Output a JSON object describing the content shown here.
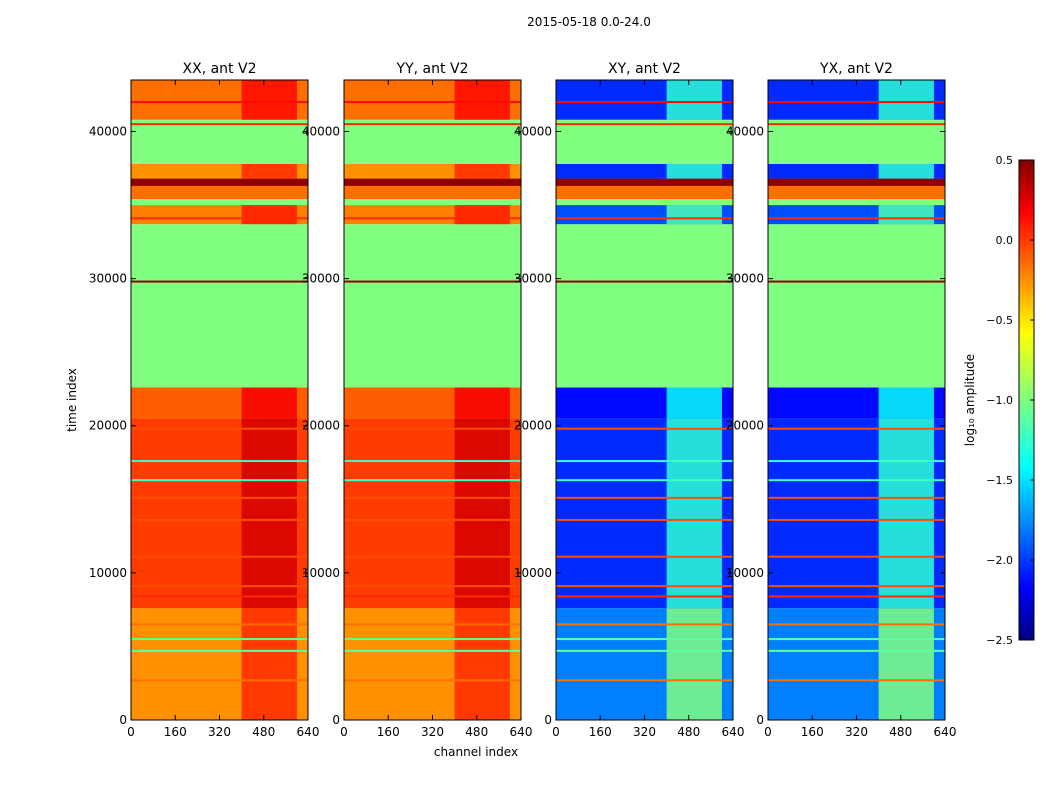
{
  "figure": {
    "suptitle": "2015-05-18 0.0-24.0",
    "xlabel": "channel index",
    "ylabel": "time index"
  },
  "chart_data": {
    "type": "heatmap",
    "title": "2015-05-18 0.0-24.0",
    "xlabel": "channel index",
    "ylabel": "time index",
    "xlim": [
      0,
      640
    ],
    "ylim": [
      0,
      43500
    ],
    "xticks": [
      "0",
      "160",
      "320",
      "480",
      "640"
    ],
    "xtick_values": [
      0,
      160,
      320,
      480,
      640
    ],
    "yticks": [
      "0",
      "10000",
      "20000",
      "30000",
      "40000"
    ],
    "ytick_values": [
      0,
      10000,
      20000,
      30000,
      40000
    ],
    "colormap": "jet",
    "panels": [
      {
        "title": "XX, ant V2",
        "kind": "parallel"
      },
      {
        "title": "YY, ant V2",
        "kind": "parallel"
      },
      {
        "title": "XY, ant V2",
        "kind": "cross"
      },
      {
        "title": "YX, ant V2",
        "kind": "cross"
      }
    ],
    "colorbar": {
      "label": "log₁₀ amplitude",
      "min": -2.5,
      "max": 0.5,
      "ticks": [
        "0.5",
        "0.0",
        "−0.5",
        "−1.0",
        "−1.5",
        "−2.0",
        "−2.5"
      ],
      "tick_values": [
        0.5,
        0.0,
        -0.5,
        -1.0,
        -1.5,
        -2.0,
        -2.5
      ]
    },
    "flagged_value": -1.0,
    "time_segments": [
      {
        "t0": 0,
        "t1": 7600,
        "parallel": -0.3,
        "cross": -1.75
      },
      {
        "t0": 7600,
        "t1": 20500,
        "parallel": -0.05,
        "cross": -2.0
      },
      {
        "t0": 20500,
        "t1": 22600,
        "parallel": -0.15,
        "cross": -2.1
      },
      {
        "t0": 22600,
        "t1": 33700,
        "flagged": true
      },
      {
        "t0": 33700,
        "t1": 35000,
        "parallel": -0.25,
        "cross": -1.9
      },
      {
        "t0": 35000,
        "t1": 35400,
        "flagged": true
      },
      {
        "t0": 35400,
        "t1": 36300,
        "value": -0.2
      },
      {
        "t0": 36300,
        "t1": 36800,
        "value": 0.45
      },
      {
        "t0": 36800,
        "t1": 37800,
        "parallel": -0.3,
        "cross": -2.0
      },
      {
        "t0": 37800,
        "t1": 40800,
        "flagged": true
      },
      {
        "t0": 40800,
        "t1": 43500,
        "parallel": -0.2,
        "cross": -2.0
      }
    ],
    "horizontal_lines": [
      {
        "t": 29800,
        "value": 0.45
      },
      {
        "t": 8400,
        "value": 0.0
      },
      {
        "t": 9100,
        "value": -0.1
      },
      {
        "t": 11100,
        "value": -0.1
      },
      {
        "t": 13600,
        "value": -0.1
      },
      {
        "t": 15100,
        "value": -0.1
      },
      {
        "t": 19800,
        "value": -0.1
      },
      {
        "t": 16300,
        "value": -1.2
      },
      {
        "t": 17600,
        "value": -1.2
      },
      {
        "t": 4700,
        "value": -1.1
      },
      {
        "t": 5500,
        "value": -1.1
      },
      {
        "t": 6500,
        "value": -0.2
      },
      {
        "t": 2700,
        "value": -0.2
      },
      {
        "t": 42000,
        "value": 0.1
      },
      {
        "t": 40500,
        "value": 0.0
      },
      {
        "t": 34100,
        "value": 0.0
      }
    ],
    "rfi_band_channels": [
      400,
      600
    ]
  }
}
